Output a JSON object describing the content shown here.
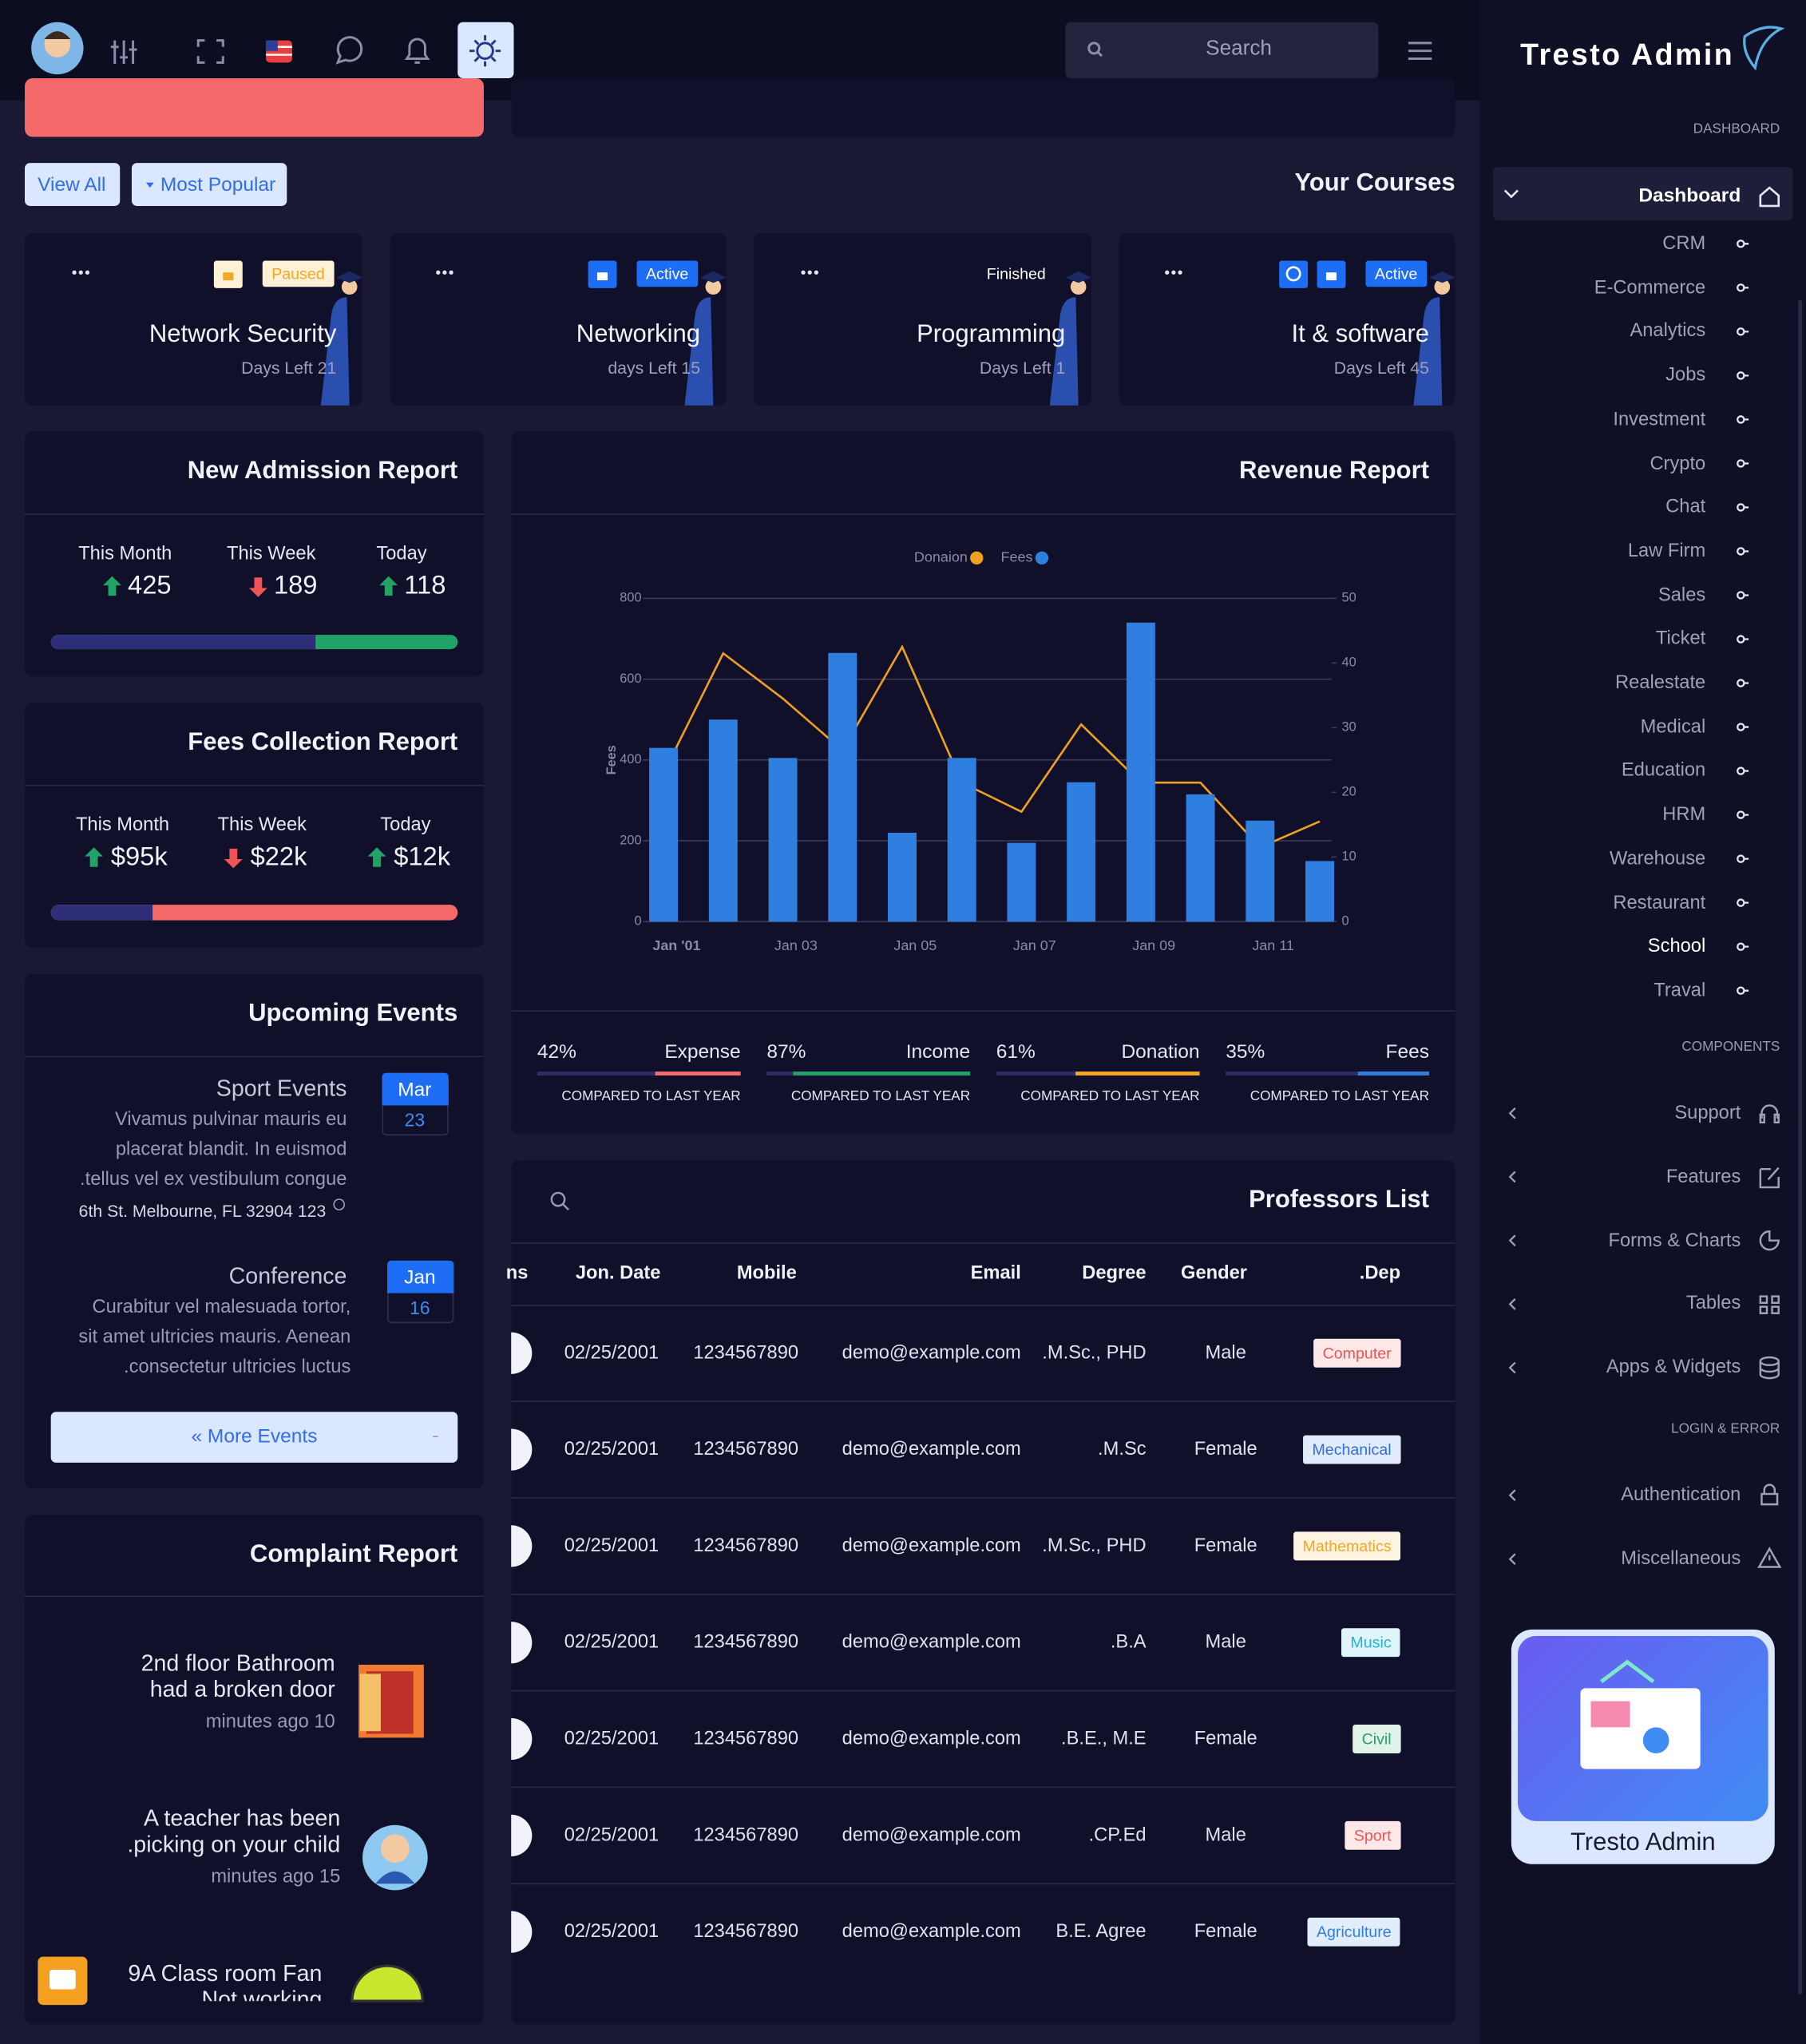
{
  "header": {
    "search": "Search",
    "brand": "Tresto Admin"
  },
  "courses": {
    "view_all": "View All",
    "most_popular": "Most Popular",
    "title": "Your Courses",
    "cards": [
      {
        "name": "Network Security",
        "days": "Days Left 21",
        "status": "Paused",
        "status_color": "#f5a623",
        "status_bg": "#fff1d6"
      },
      {
        "name": "Networking",
        "days": "days Left 15",
        "status": "Active",
        "status_color": "#ffffff",
        "status_bg": "#1e6ef5"
      },
      {
        "name": "Programming",
        "days": "Days Left 1",
        "status": "Finished",
        "status_color": "#ffffff",
        "status_bg": "transparent"
      },
      {
        "name": "It & software",
        "days": "Days Left 45",
        "status": "Active",
        "status_color": "#ffffff",
        "status_bg": "#1e6ef5"
      }
    ]
  },
  "admission": {
    "title": "New Admission Report",
    "stats": [
      {
        "label": "This Month",
        "value": "425",
        "trend": "up"
      },
      {
        "label": "This Week",
        "value": "189",
        "trend": "down"
      },
      {
        "label": "Today",
        "value": "118",
        "trend": "up"
      }
    ]
  },
  "fees": {
    "title": "Fees Collection Report",
    "stats": [
      {
        "label": "This Month",
        "value": "$95k",
        "trend": "up"
      },
      {
        "label": "This Week",
        "value": "$22k",
        "trend": "down"
      },
      {
        "label": "Today",
        "value": "$12k",
        "trend": "up"
      }
    ]
  },
  "events": {
    "title": "Upcoming Events",
    "more": "« More Events",
    "items": [
      {
        "title": "Sport Events",
        "month": "Mar",
        "day": "23",
        "lines": [
          "Vivamus pulvinar mauris eu",
          "placerat blandit. In euismod",
          ".tellus vel ex vestibulum congue"
        ],
        "address": "6th St. Melbourne, FL 32904 123"
      },
      {
        "title": "Conference",
        "month": "Jan",
        "day": "16",
        "lines": [
          "Curabitur vel malesuada tortor,",
          "sit amet ultricies mauris. Aenean",
          ".consectetur ultricies luctus"
        ]
      }
    ]
  },
  "complaints": {
    "title": "Complaint Report",
    "items": [
      {
        "lines": [
          "2nd floor Bathroom",
          "had a broken door"
        ],
        "time": "minutes ago 10"
      },
      {
        "lines": [
          "A teacher has been",
          ".picking on your child"
        ],
        "time": "minutes ago 15"
      },
      {
        "lines": [
          "9A Class room Fan",
          "Not working"
        ]
      }
    ]
  },
  "chart_data": {
    "type": "bar",
    "title": "Revenue Report",
    "ylabel": "Fees",
    "categories": [
      "Jan '01",
      null,
      "Jan 03",
      null,
      "Jan 05",
      null,
      "Jan 07",
      null,
      "Jan 09",
      null,
      "Jan 11",
      null
    ],
    "series": [
      {
        "name": "Donaion",
        "type": "line",
        "axis": "y2",
        "color": "#f0a020",
        "values": [
          23,
          41.5,
          34.5,
          26.5,
          42.5,
          21.5,
          17,
          30.5,
          21.5,
          21.5,
          11.5,
          15.5
        ]
      },
      {
        "name": "Fees",
        "color": "#2e7fe0",
        "values": [
          430,
          500,
          405,
          665,
          220,
          405,
          195,
          345,
          740,
          315,
          250,
          150
        ]
      }
    ],
    "ylim": [
      0,
      800
    ],
    "yticks": [
      0,
      200,
      400,
      600,
      800
    ],
    "y2lim": [
      0,
      50
    ],
    "y2ticks": [
      0,
      10,
      20,
      30,
      40,
      50
    ],
    "grid": true
  },
  "revenue_stats": [
    {
      "value": 42,
      "value_label": "42%",
      "label": "Expense",
      "note": "COMPARED TO LAST YEAR",
      "color": "#f56c6c"
    },
    {
      "value": 87,
      "value_label": "87%",
      "label": "Income",
      "note": "COMPARED TO LAST YEAR",
      "color": "#21a366"
    },
    {
      "value": 61,
      "value_label": "61%",
      "label": "Donation",
      "note": "COMPARED TO LAST YEAR",
      "color": "#f5a623"
    },
    {
      "value": 35,
      "value_label": "35%",
      "label": "Fees",
      "note": "COMPARED TO LAST YEAR",
      "color": "#2e7fe0"
    }
  ],
  "professors": {
    "title": "Professors List",
    "columns": [
      "ns",
      "Jon. Date",
      "Mobile",
      "Email",
      "Degree",
      "Gender",
      ".Dep"
    ],
    "rows": [
      {
        "date": "02/25/2001",
        "mobile": "1234567890",
        "email": "demo@example.com",
        "degree": ".M.Sc., PHD",
        "gender": "Male",
        "dep": "Computer",
        "color": "#f05454"
      },
      {
        "date": "02/25/2001",
        "mobile": "1234567890",
        "email": "demo@example.com",
        "degree": ".M.Sc",
        "gender": "Female",
        "dep": "Mechanical",
        "color": "#2e6fe0"
      },
      {
        "date": "02/25/2001",
        "mobile": "1234567890",
        "email": "demo@example.com",
        "degree": ".M.Sc., PHD",
        "gender": "Female",
        "dep": "Mathematics",
        "color": "#f5a623"
      },
      {
        "date": "02/25/2001",
        "mobile": "1234567890",
        "email": "demo@example.com",
        "degree": ".B.A",
        "gender": "Male",
        "dep": "Music",
        "color": "#1fb5d6"
      },
      {
        "date": "02/25/2001",
        "mobile": "1234567890",
        "email": "demo@example.com",
        "degree": ".B.E., M.E",
        "gender": "Female",
        "dep": "Civil",
        "color": "#21a366"
      },
      {
        "date": "02/25/2001",
        "mobile": "1234567890",
        "email": "demo@example.com",
        "degree": ".CP.Ed",
        "gender": "Male",
        "dep": "Sport",
        "color": "#f05454"
      },
      {
        "date": "02/25/2001",
        "mobile": "1234567890",
        "email": "demo@example.com",
        "degree": "B.E. Agree",
        "gender": "Female",
        "dep": "Agriculture",
        "color": "#2e7fe0"
      }
    ]
  },
  "sidebar": {
    "dashboard_heading": "DASHBOARD",
    "dashboard": "Dashboard",
    "active_item": "School",
    "dashboard_items": [
      "CRM",
      "E-Commerce",
      "Analytics",
      "Jobs",
      "Investment",
      "Crypto",
      "Chat",
      "Law Firm",
      "Sales",
      "Ticket",
      "Realestate",
      "Medical",
      "Education",
      "HRM",
      "Warehouse",
      "Restaurant",
      "School",
      "Traval"
    ],
    "components_heading": "COMPONENTS",
    "components": [
      "Support",
      "Features",
      "Forms & Charts",
      "Tables",
      "Apps & Widgets"
    ],
    "login_heading": "LOGIN & ERROR",
    "login": [
      "Authentication",
      "Miscellaneous"
    ],
    "promo": "Tresto Admin"
  }
}
